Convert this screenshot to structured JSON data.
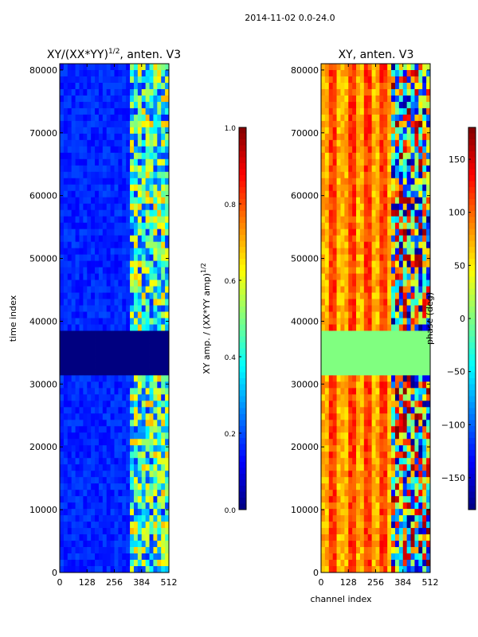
{
  "figure": {
    "suptitle": "2014-11-02 0.0-24.0"
  },
  "chart_data": [
    {
      "type": "heatmap",
      "title": "XY/(XX*YY)^1/2, anten. V3",
      "title_main": "XY/(XX*YY)",
      "title_exp": "1/2",
      "title_tail": ", anten. V3",
      "xlabel": "",
      "ylabel": "time index",
      "xlim": [
        0,
        512
      ],
      "ylim": [
        0,
        81000
      ],
      "xticks": [
        "0",
        "128",
        "256",
        "384",
        "512"
      ],
      "yticks": [
        "0",
        "10000",
        "20000",
        "30000",
        "40000",
        "50000",
        "60000",
        "70000",
        "80000"
      ],
      "colorbar": {
        "label": "XY amp. / (XX*YY amp)^1/2",
        "label_main": "XY amp. / (XX*YY amp)",
        "label_exp": "1/2",
        "range": [
          0.0,
          1.0
        ],
        "ticks": [
          "0.0",
          "0.2",
          "0.4",
          "0.6",
          "0.8",
          "1.0"
        ]
      },
      "colormap": "jet",
      "description_values": {
        "background": 0.1,
        "flagged_band": [
          31000,
          38000
        ],
        "flagged_value": 0.0
      }
    },
    {
      "type": "heatmap",
      "title": "XY, anten. V3",
      "xlabel": "channel index",
      "ylabel": "",
      "xlim": [
        0,
        512
      ],
      "ylim": [
        0,
        81000
      ],
      "xticks": [
        "0",
        "128",
        "256",
        "384",
        "512"
      ],
      "yticks": [
        "0",
        "10000",
        "20000",
        "30000",
        "40000",
        "50000",
        "60000",
        "70000",
        "80000"
      ],
      "colorbar": {
        "label": "phase (deg)",
        "range": [
          -180,
          180
        ],
        "ticks": [
          "−150",
          "−100",
          "−50",
          "0",
          "50",
          "100",
          "150"
        ]
      },
      "colormap": "jet",
      "description_values": {
        "background": 120,
        "flagged_band": [
          31000,
          38000
        ],
        "flagged_value": 0
      }
    }
  ]
}
